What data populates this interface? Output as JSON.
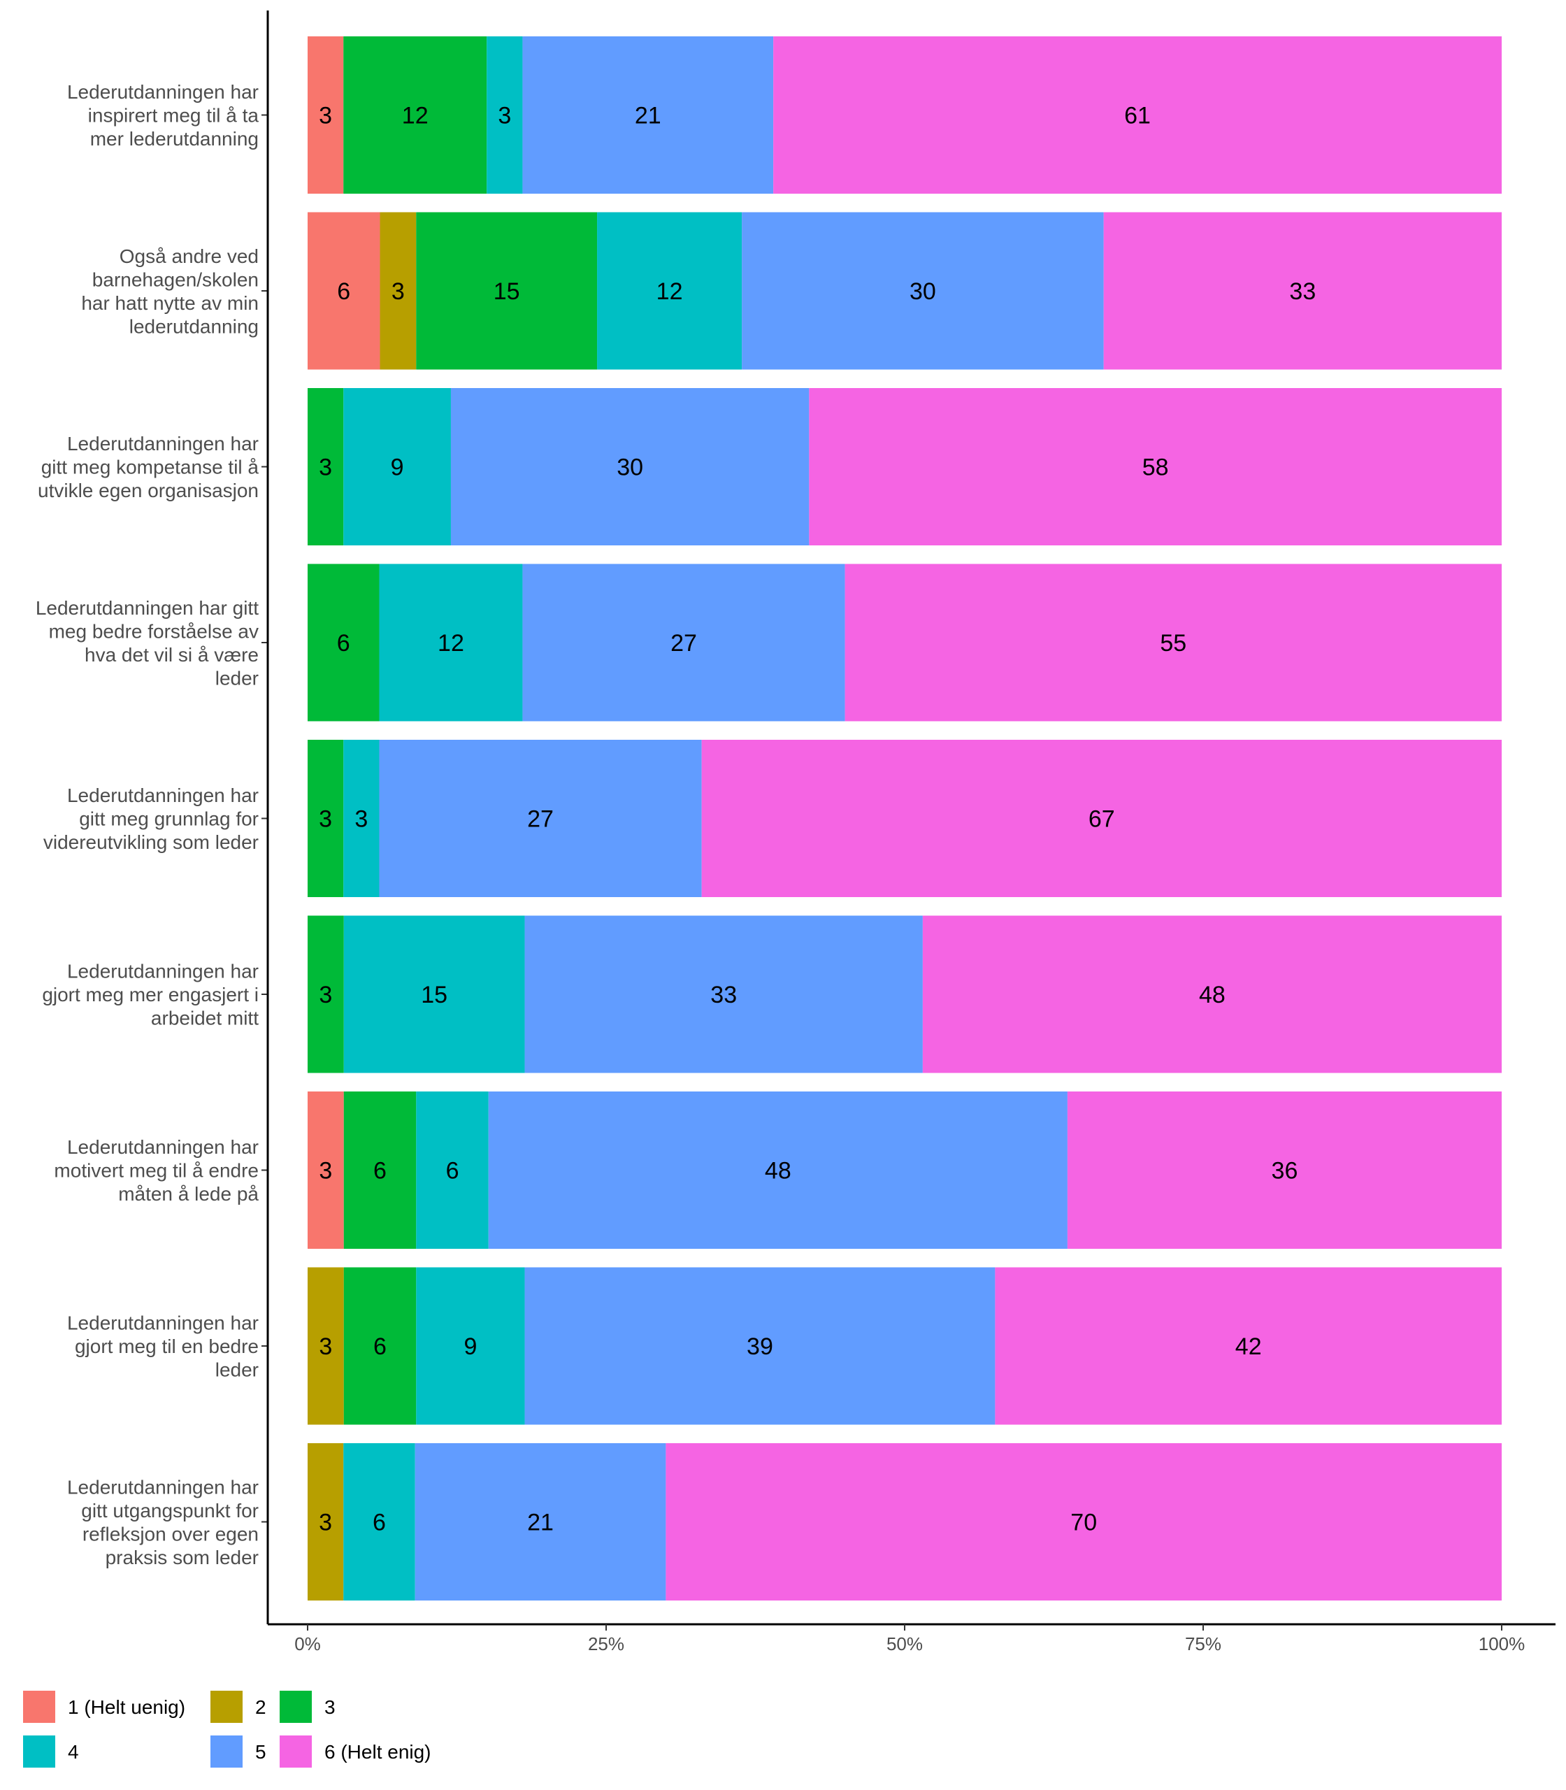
{
  "chart_data": {
    "type": "bar",
    "orientation": "horizontal",
    "stacked": true,
    "percent": true,
    "categories": [
      "Lederutdanningen har inspirert meg til å ta mer lederutdanning",
      "Også andre ved barnehagen/skolen har hatt nytte av min lederutdanning",
      "Lederutdanningen har gitt meg kompetanse til å utvikle egen organisasjon",
      "Lederutdanningen har gitt meg bedre forståelse av hva det vil si å være leder",
      "Lederutdanningen har gitt meg grunnlag for videreutvikling som leder",
      "Lederutdanningen har gjort meg mer engasjert i arbeidet mitt",
      "Lederutdanningen har motivert meg til å endre måten å lede på",
      "Lederutdanningen har gjort meg til en bedre leder",
      "Lederutdanningen har gitt utgangspunkt for refleksjon over egen praksis som leder"
    ],
    "category_lines": [
      [
        "Lederutdanningen har",
        "inspirert meg til å ta",
        "mer lederutdanning"
      ],
      [
        "Også andre ved",
        "barnehagen/skolen",
        "har hatt nytte av min",
        "lederutdanning"
      ],
      [
        "Lederutdanningen har",
        "gitt meg kompetanse til å",
        "utvikle egen organisasjon"
      ],
      [
        "Lederutdanningen har gitt",
        "meg bedre forståelse av",
        "hva det vil si å være",
        "leder"
      ],
      [
        "Lederutdanningen har",
        "gitt meg grunnlag for",
        "videreutvikling som leder"
      ],
      [
        "Lederutdanningen har",
        "gjort meg mer engasjert i",
        "arbeidet mitt"
      ],
      [
        "Lederutdanningen har",
        "motivert meg til å endre",
        "måten å lede på"
      ],
      [
        "Lederutdanningen har",
        "gjort meg til en bedre",
        "leder"
      ],
      [
        "Lederutdanningen har",
        "gitt utgangspunkt for",
        "refleksjon over egen",
        "praksis som leder"
      ]
    ],
    "series": [
      {
        "name": "1 (Helt uenig)",
        "color": "#F8766D",
        "values": [
          3,
          6,
          0,
          0,
          0,
          0,
          3,
          0,
          0
        ]
      },
      {
        "name": "2",
        "color": "#B79F00",
        "values": [
          0,
          3,
          0,
          0,
          0,
          0,
          0,
          3,
          3
        ]
      },
      {
        "name": "3",
        "color": "#00BA38",
        "values": [
          12,
          15,
          3,
          6,
          3,
          3,
          6,
          6,
          0
        ]
      },
      {
        "name": "4",
        "color": "#00BFC4",
        "values": [
          3,
          12,
          9,
          12,
          3,
          15,
          6,
          9,
          6
        ]
      },
      {
        "name": "5",
        "color": "#619CFF",
        "values": [
          21,
          30,
          30,
          27,
          27,
          33,
          48,
          39,
          21
        ]
      },
      {
        "name": "6 (Helt enig)",
        "color": "#F564E3",
        "values": [
          61,
          33,
          58,
          55,
          67,
          48,
          36,
          42,
          70
        ]
      }
    ],
    "x_ticks": [
      "0%",
      "25%",
      "50%",
      "75%",
      "100%"
    ],
    "x_tick_values": [
      0,
      25,
      50,
      75,
      100
    ],
    "xlim": [
      0,
      100
    ],
    "grid": false,
    "legend_position": "bottom-left",
    "legend_columns": 3
  }
}
